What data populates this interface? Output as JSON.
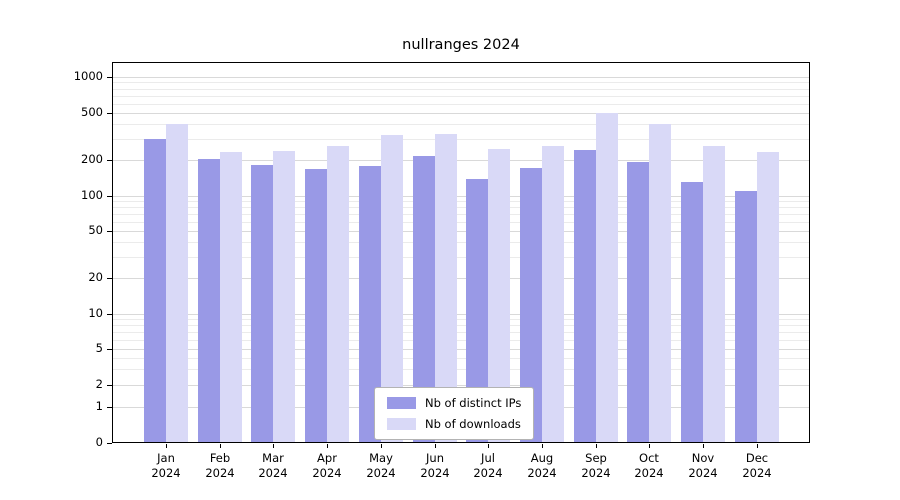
{
  "chart_data": {
    "type": "bar",
    "title": "nullranges 2024",
    "categories": [
      "Jan",
      "Feb",
      "Mar",
      "Apr",
      "May",
      "Jun",
      "Jul",
      "Aug",
      "Sep",
      "Oct",
      "Nov",
      "Dec"
    ],
    "x_tick_year": "2024",
    "series": [
      {
        "name": "Nb of distinct IPs",
        "color": "#9999e6",
        "values": [
          300,
          205,
          180,
          168,
          178,
          215,
          140,
          172,
          245,
          192,
          132,
          110
        ]
      },
      {
        "name": "Nb of downloads",
        "color": "#d9d9f7",
        "values": [
          405,
          235,
          238,
          262,
          328,
          332,
          250,
          262,
          500,
          400,
          262,
          235
        ]
      }
    ],
    "y_ticks": [
      0,
      1,
      2,
      5,
      10,
      20,
      50,
      100,
      200,
      500,
      1000
    ],
    "y_scale": "symlog",
    "ylim": [
      0,
      1300
    ],
    "xlabel": "",
    "ylabel": "",
    "grid": true,
    "legend_position": "lower center",
    "colors": {
      "major_gridline": "#d9d9d9",
      "minor_gridline": "#ebebeb",
      "axis": "#000000",
      "background": "#ffffff"
    }
  }
}
